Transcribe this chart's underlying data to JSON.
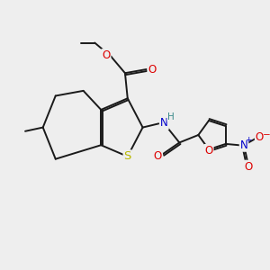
{
  "bg_color": "#eeeeee",
  "bond_color": "#1a1a1a",
  "bond_width": 1.4,
  "dbl_sep": 0.07,
  "atom_colors": {
    "S": "#b8b800",
    "O": "#dd0000",
    "N": "#0000cc",
    "H": "#3a8a8a",
    "C": "#1a1a1a"
  },
  "font_size": 8.5
}
